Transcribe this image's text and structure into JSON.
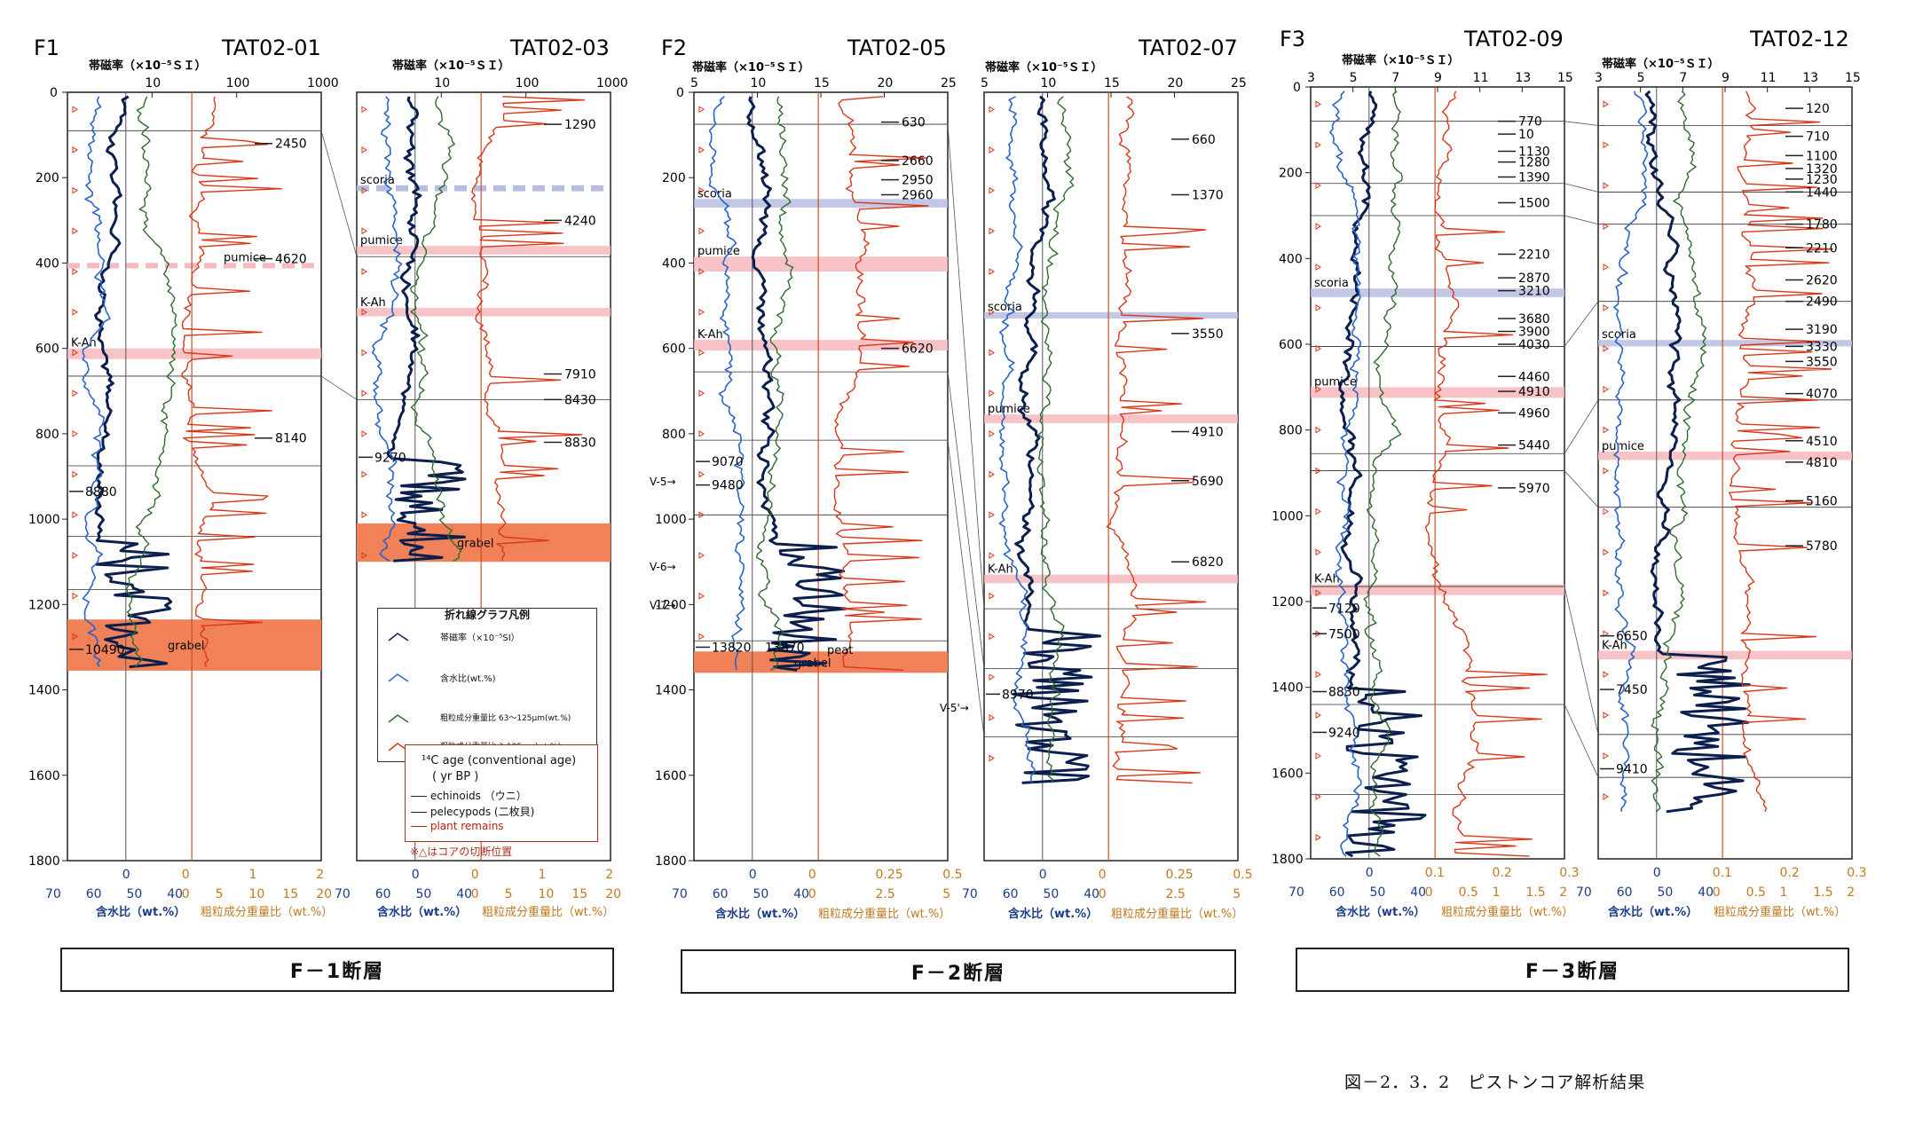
{
  "colors": {
    "susceptibility": "#0b1f4f",
    "water": "#2a64c8",
    "coarse_fine": "#2f6b2f",
    "coarse_coarse": "#d8381a",
    "pumice_band": "#f7b9bd",
    "scoria_band": "#b7bde0",
    "grabel_band": "#f08158",
    "age_plant": "#c02010"
  },
  "groups": [
    {
      "id": "F1",
      "label": "F1",
      "fault_label": "F－1断層"
    },
    {
      "id": "F2",
      "label": "F2",
      "fault_label": "F－2断層"
    },
    {
      "id": "F3",
      "label": "F3",
      "fault_label": "F－3断層"
    }
  ],
  "caption": "図－2．3．2　ピストンコア解析結果",
  "common": {
    "top_axis_title": "帯磁率（×10⁻⁵ＳＩ）",
    "water_axis_title": "含水比（wt.%）",
    "coarse_axis_title": "粗粒成分重量比（wt.%）"
  },
  "legend": {
    "title": "折れ線グラフ凡例",
    "items": [
      "帯磁率（×10⁻⁵SI）",
      "含水比(wt.%)",
      "粗粒成分重量比 63～125μm(wt.%)",
      "粗粒成分重量比 ＞125μm(wt.%)"
    ],
    "age_title": "¹⁴C age (conventional age)",
    "age_sub": "( yr BP )",
    "age_items": [
      "echinoids （ウニ）",
      "pelecypods (二枚貝)",
      "plant remains"
    ],
    "note": "※△はコアの切断位置"
  },
  "chart_data": [
    {
      "type": "line",
      "core": "TAT02-01",
      "group": "F1",
      "top_axis": {
        "scale": "log",
        "ticks": [
          "10",
          "100",
          "1000"
        ],
        "range": [
          1,
          1000
        ]
      },
      "water_axis": {
        "ticks": [
          "70",
          "60",
          "50",
          "40"
        ]
      },
      "coarse_axis": {
        "ticks": [
          "0",
          "5",
          "10",
          "15",
          "20"
        ],
        "ticks2": [
          "0",
          "1",
          "2"
        ]
      },
      "depth_axis": {
        "label_ticks": [
          "0",
          "200",
          "400",
          "600",
          "800",
          "1000",
          "1200",
          "1400",
          "1600",
          "1800"
        ],
        "range": [
          0,
          1800
        ]
      },
      "core_length": 1350,
      "bands": [
        {
          "label": "pumice",
          "top": 400,
          "bottom": 412,
          "kind": "pumice",
          "dashed": true
        },
        {
          "label": "K-Ah",
          "top": 600,
          "bottom": 625,
          "kind": "pumice"
        },
        {
          "label": "grabel",
          "top": 1235,
          "bottom": 1355,
          "kind": "grabel"
        }
      ],
      "ages": [
        {
          "depth": 120,
          "value": "2450",
          "side": "right"
        },
        {
          "depth": 390,
          "value": "4620",
          "side": "right"
        },
        {
          "depth": 810,
          "value": "8140",
          "side": "right"
        },
        {
          "depth": 935,
          "value": "8880",
          "side": "left"
        },
        {
          "depth": 1305,
          "value": "10490",
          "side": "left"
        }
      ],
      "lines": [
        90,
        665,
        875,
        1040,
        1165
      ]
    },
    {
      "type": "line",
      "core": "TAT02-03",
      "group": "F1",
      "top_axis": {
        "scale": "log",
        "ticks": [
          "10",
          "100",
          "1000"
        ],
        "range": [
          1,
          1000
        ]
      },
      "water_axis": {
        "ticks": [
          "70",
          "60",
          "50",
          "40"
        ]
      },
      "coarse_axis": {
        "ticks": [
          "0",
          "5",
          "10",
          "15",
          "20"
        ],
        "ticks2": [
          "0",
          "1",
          "2"
        ]
      },
      "depth_axis": {
        "range": [
          0,
          1800
        ]
      },
      "core_length": 1100,
      "bands": [
        {
          "label": "scoria",
          "top": 218,
          "bottom": 232,
          "kind": "scoria",
          "dashed": true
        },
        {
          "label": "pumice",
          "top": 360,
          "bottom": 380,
          "kind": "pumice"
        },
        {
          "label": "K-Ah",
          "top": 505,
          "bottom": 525,
          "kind": "pumice"
        },
        {
          "label": "grabel",
          "top": 1010,
          "bottom": 1100,
          "kind": "grabel"
        }
      ],
      "ages": [
        {
          "depth": 75,
          "value": "1290",
          "side": "right"
        },
        {
          "depth": 300,
          "value": "4240",
          "side": "right"
        },
        {
          "depth": 660,
          "value": "7910",
          "side": "right"
        },
        {
          "depth": 720,
          "value": "8430",
          "side": "right"
        },
        {
          "depth": 820,
          "value": "8830",
          "side": "right"
        },
        {
          "depth": 855,
          "value": "9270",
          "side": "left"
        }
      ],
      "lines": [
        385,
        720
      ]
    },
    {
      "type": "line",
      "core": "TAT02-05",
      "group": "F2",
      "top_axis": {
        "scale": "linear",
        "ticks": [
          "5",
          "10",
          "15",
          "20",
          "25"
        ],
        "range": [
          5,
          25
        ]
      },
      "water_axis": {
        "ticks": [
          "70",
          "60",
          "50",
          "40"
        ]
      },
      "coarse_axis": {
        "ticks": [
          "0",
          "2.5",
          "5"
        ],
        "ticks2": [
          "0",
          "0.25",
          "0.5"
        ]
      },
      "depth_axis": {
        "label_ticks": [
          "0",
          "200",
          "400",
          "600",
          "800",
          "1000",
          "1200",
          "1400",
          "1600",
          "1800"
        ],
        "range": [
          0,
          1800
        ]
      },
      "core_length": 1360,
      "bands": [
        {
          "label": "scoria",
          "top": 250,
          "bottom": 270,
          "kind": "scoria"
        },
        {
          "label": "pumice",
          "top": 385,
          "bottom": 420,
          "kind": "pumice"
        },
        {
          "label": "K-Ah",
          "top": 580,
          "bottom": 605,
          "kind": "pumice"
        },
        {
          "label": "grabel",
          "top": 1310,
          "bottom": 1360,
          "kind": "grabel"
        }
      ],
      "ages": [
        {
          "depth": 70,
          "value": "630",
          "side": "right"
        },
        {
          "depth": 160,
          "value": "2660",
          "side": "right"
        },
        {
          "depth": 205,
          "value": "2950",
          "side": "right"
        },
        {
          "depth": 240,
          "value": "2960",
          "side": "right"
        },
        {
          "depth": 600,
          "value": "6620",
          "side": "right"
        },
        {
          "depth": 865,
          "value": "9070",
          "side": "left"
        },
        {
          "depth": 920,
          "value": "9480",
          "side": "left"
        },
        {
          "depth": 1300,
          "value": "13820",
          "side": "left"
        },
        {
          "depth": 1300,
          "value": "13870",
          "side": "mid"
        }
      ],
      "markers": [
        {
          "depth": 910,
          "label": "V-5"
        },
        {
          "depth": 1110,
          "label": "V-6"
        },
        {
          "depth": 1200,
          "label": "V-7"
        }
      ],
      "extra_labels": [
        {
          "depth": 1305,
          "label": "peat"
        }
      ],
      "lines": [
        75,
        655,
        815,
        990,
        1285
      ]
    },
    {
      "type": "line",
      "core": "TAT02-07",
      "group": "F2",
      "top_axis": {
        "scale": "linear",
        "ticks": [
          "5",
          "10",
          "15",
          "20",
          "25"
        ],
        "range": [
          5,
          25
        ]
      },
      "water_axis": {
        "ticks": [
          "70",
          "60",
          "50",
          "40"
        ]
      },
      "coarse_axis": {
        "ticks": [
          "0",
          "2.5",
          "5"
        ],
        "ticks2": [
          "0",
          "0.25",
          "0.5"
        ]
      },
      "depth_axis": {
        "range": [
          0,
          1800
        ]
      },
      "core_length": 1620,
      "bands": [
        {
          "label": "scoria",
          "top": 515,
          "bottom": 530,
          "kind": "scoria"
        },
        {
          "label": "pumice",
          "top": 755,
          "bottom": 775,
          "kind": "pumice"
        },
        {
          "label": "K-Ah",
          "top": 1130,
          "bottom": 1150,
          "kind": "pumice"
        }
      ],
      "ages": [
        {
          "depth": 110,
          "value": "660",
          "side": "right"
        },
        {
          "depth": 240,
          "value": "1370",
          "side": "right"
        },
        {
          "depth": 565,
          "value": "3550",
          "side": "right"
        },
        {
          "depth": 795,
          "value": "4910",
          "side": "right"
        },
        {
          "depth": 910,
          "value": "5690",
          "side": "right"
        },
        {
          "depth": 1100,
          "value": "6820",
          "side": "right"
        },
        {
          "depth": 1410,
          "value": "8970",
          "side": "left"
        }
      ],
      "markers": [
        {
          "depth": 1440,
          "label": "V-5'"
        }
      ],
      "lines": [
        1210,
        1350,
        1510
      ]
    },
    {
      "type": "line",
      "core": "TAT02-09",
      "group": "F3",
      "top_axis": {
        "scale": "linear",
        "ticks": [
          "3",
          "5",
          "7",
          "9",
          "11",
          "13",
          "15"
        ],
        "range": [
          3,
          15
        ]
      },
      "water_axis": {
        "ticks": [
          "70",
          "60",
          "50",
          "40"
        ]
      },
      "coarse_axis": {
        "ticks": [
          "0",
          "0.5",
          "1",
          "1.5",
          "2"
        ],
        "ticks2": [
          "0.1",
          "0.2",
          "0.3"
        ]
      },
      "depth_axis": {
        "label_ticks": [
          "0",
          "200",
          "400",
          "600",
          "800",
          "1000",
          "1200",
          "1400",
          "1600",
          "1800"
        ],
        "range": [
          0,
          1800
        ]
      },
      "core_length": 1800,
      "bands": [
        {
          "label": "scoria",
          "top": 470,
          "bottom": 490,
          "kind": "scoria"
        },
        {
          "label": "pumice",
          "top": 700,
          "bottom": 725,
          "kind": "pumice"
        },
        {
          "label": "K-Ah",
          "top": 1160,
          "bottom": 1185,
          "kind": "pumice"
        }
      ],
      "ages": [
        {
          "depth": 80,
          "value": "770",
          "side": "right"
        },
        {
          "depth": 110,
          "value": "10",
          "side": "right"
        },
        {
          "depth": 150,
          "value": "1130",
          "side": "right"
        },
        {
          "depth": 175,
          "value": "1280",
          "side": "right"
        },
        {
          "depth": 210,
          "value": "1390",
          "side": "right"
        },
        {
          "depth": 270,
          "value": "1500",
          "side": "right"
        },
        {
          "depth": 390,
          "value": "2210",
          "side": "right"
        },
        {
          "depth": 445,
          "value": "2870",
          "side": "right"
        },
        {
          "depth": 475,
          "value": "3210",
          "side": "right"
        },
        {
          "depth": 540,
          "value": "3680",
          "side": "right"
        },
        {
          "depth": 570,
          "value": "3900",
          "side": "right"
        },
        {
          "depth": 600,
          "value": "4030",
          "side": "right"
        },
        {
          "depth": 675,
          "value": "4460",
          "side": "right"
        },
        {
          "depth": 710,
          "value": "4910",
          "side": "right"
        },
        {
          "depth": 760,
          "value": "4960",
          "side": "right"
        },
        {
          "depth": 835,
          "value": "5440",
          "side": "right"
        },
        {
          "depth": 935,
          "value": "5970",
          "side": "right"
        },
        {
          "depth": 1215,
          "value": "7120",
          "side": "left"
        },
        {
          "depth": 1275,
          "value": "7500",
          "side": "left"
        },
        {
          "depth": 1410,
          "value": "8830",
          "side": "left"
        },
        {
          "depth": 1505,
          "value": "9240",
          "side": "left"
        }
      ],
      "lines": [
        80,
        225,
        300,
        605,
        855,
        895,
        1165,
        1440,
        1650
      ]
    },
    {
      "type": "line",
      "core": "TAT02-12",
      "group": "F3",
      "top_axis": {
        "scale": "linear",
        "ticks": [
          "3",
          "5",
          "7",
          "9",
          "11",
          "13",
          "15"
        ],
        "range": [
          3,
          15
        ]
      },
      "water_axis": {
        "ticks": [
          "70",
          "60",
          "50",
          "40"
        ]
      },
      "coarse_axis": {
        "ticks": [
          "0",
          "0.5",
          "1",
          "1.5",
          "2"
        ],
        "ticks2": [
          "0.1",
          "0.2",
          "0.3"
        ]
      },
      "depth_axis": {
        "range": [
          0,
          1800
        ]
      },
      "core_length": 1690,
      "bands": [
        {
          "label": "scoria",
          "top": 590,
          "bottom": 605,
          "kind": "scoria"
        },
        {
          "label": "pumice",
          "top": 850,
          "bottom": 870,
          "kind": "pumice"
        },
        {
          "label": "K-Ah",
          "top": 1315,
          "bottom": 1335,
          "kind": "pumice"
        }
      ],
      "ages": [
        {
          "depth": 50,
          "value": "120",
          "side": "right"
        },
        {
          "depth": 115,
          "value": "710",
          "side": "right"
        },
        {
          "depth": 160,
          "value": "1100",
          "side": "right"
        },
        {
          "depth": 190,
          "value": "1320",
          "side": "right"
        },
        {
          "depth": 215,
          "value": "1230",
          "side": "right"
        },
        {
          "depth": 245,
          "value": "1440",
          "side": "right"
        },
        {
          "depth": 320,
          "value": "1780",
          "side": "right"
        },
        {
          "depth": 375,
          "value": "2210",
          "side": "right"
        },
        {
          "depth": 450,
          "value": "2620",
          "side": "right"
        },
        {
          "depth": 500,
          "value": "2490",
          "side": "right"
        },
        {
          "depth": 565,
          "value": "3190",
          "side": "right"
        },
        {
          "depth": 605,
          "value": "3330",
          "side": "right"
        },
        {
          "depth": 640,
          "value": "3550",
          "side": "right"
        },
        {
          "depth": 715,
          "value": "4070",
          "side": "right"
        },
        {
          "depth": 825,
          "value": "4510",
          "side": "right"
        },
        {
          "depth": 875,
          "value": "4810",
          "side": "right"
        },
        {
          "depth": 965,
          "value": "5160",
          "side": "right"
        },
        {
          "depth": 1070,
          "value": "5780",
          "side": "right"
        },
        {
          "depth": 1280,
          "value": "6650",
          "side": "left"
        },
        {
          "depth": 1405,
          "value": "7450",
          "side": "left"
        },
        {
          "depth": 1590,
          "value": "9410",
          "side": "left"
        }
      ],
      "lines": [
        90,
        245,
        320,
        500,
        730,
        980,
        1510,
        1610
      ]
    }
  ]
}
